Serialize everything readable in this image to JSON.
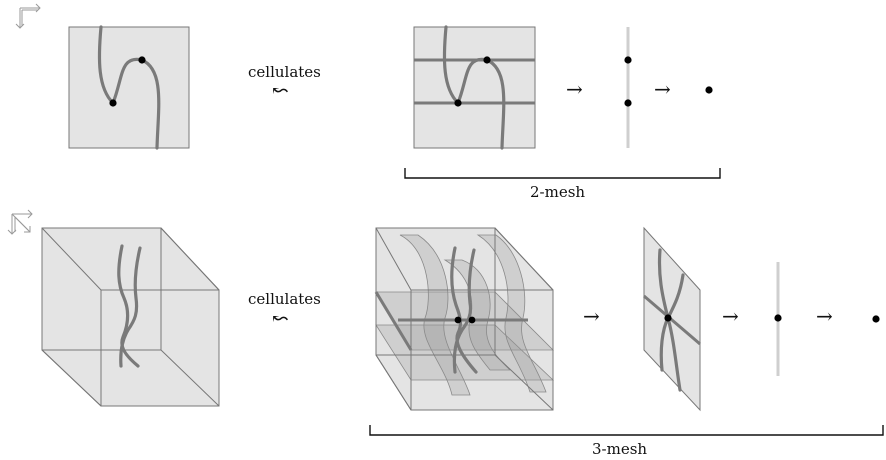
{
  "labels": {
    "cellulates_top": "cellulates",
    "cellulates_bottom": "cellulates",
    "mesh2": "2-mesh",
    "mesh3": "3-mesh"
  },
  "symbols": {
    "arrow": "→",
    "squiggle_arrow": "↜"
  },
  "colors": {
    "face": "#e4e4e4",
    "strand": "#7a7a7a",
    "dot": "#000000",
    "pale_line": "#cfcfcf"
  },
  "icons": [
    "2d-frame-icon",
    "3d-frame-icon"
  ]
}
